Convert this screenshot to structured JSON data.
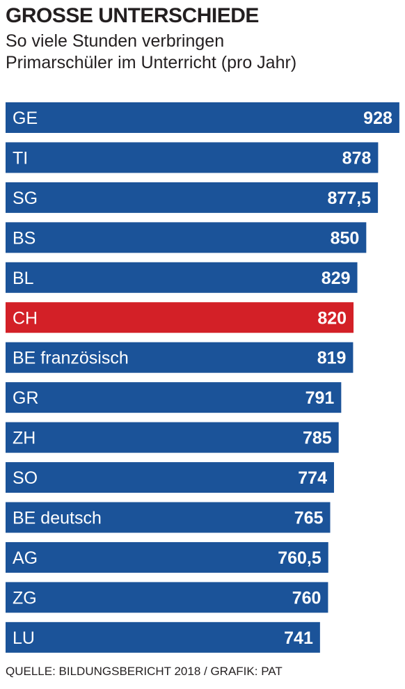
{
  "header": {
    "title": "GROSSE UNTERSCHIEDE",
    "subtitle_line1": "So viele Stunden verbringen",
    "subtitle_line2": "Primarschüler im Unterricht (pro Jahr)"
  },
  "footer": {
    "source": "QUELLE: BILDUNGSBERICHT 2018 / GRAFIK: PAT"
  },
  "colors": {
    "bar": "#1b5399",
    "highlight": "#d32027",
    "text_on_bar": "#ffffff"
  },
  "chart_data": {
    "type": "bar",
    "orientation": "horizontal",
    "title": "GROSSE UNTERSCHIEDE",
    "subtitle": "So viele Stunden verbringen Primarschüler im Unterricht (pro Jahr)",
    "categories": [
      "GE",
      "TI",
      "SG",
      "BS",
      "BL",
      "CH",
      "BE französisch",
      "GR",
      "ZH",
      "SO",
      "BE deutsch",
      "AG",
      "ZG",
      "LU"
    ],
    "values": [
      928,
      878,
      877.5,
      850,
      829,
      820,
      819,
      791,
      785,
      774,
      765,
      760.5,
      760,
      741
    ],
    "value_labels": [
      "928",
      "878",
      "877,5",
      "850",
      "829",
      "820",
      "819",
      "791",
      "785",
      "774",
      "765",
      "760,5",
      "760",
      "741"
    ],
    "highlight_category": "CH",
    "xlabel": "",
    "ylabel": "",
    "grid": false
  }
}
